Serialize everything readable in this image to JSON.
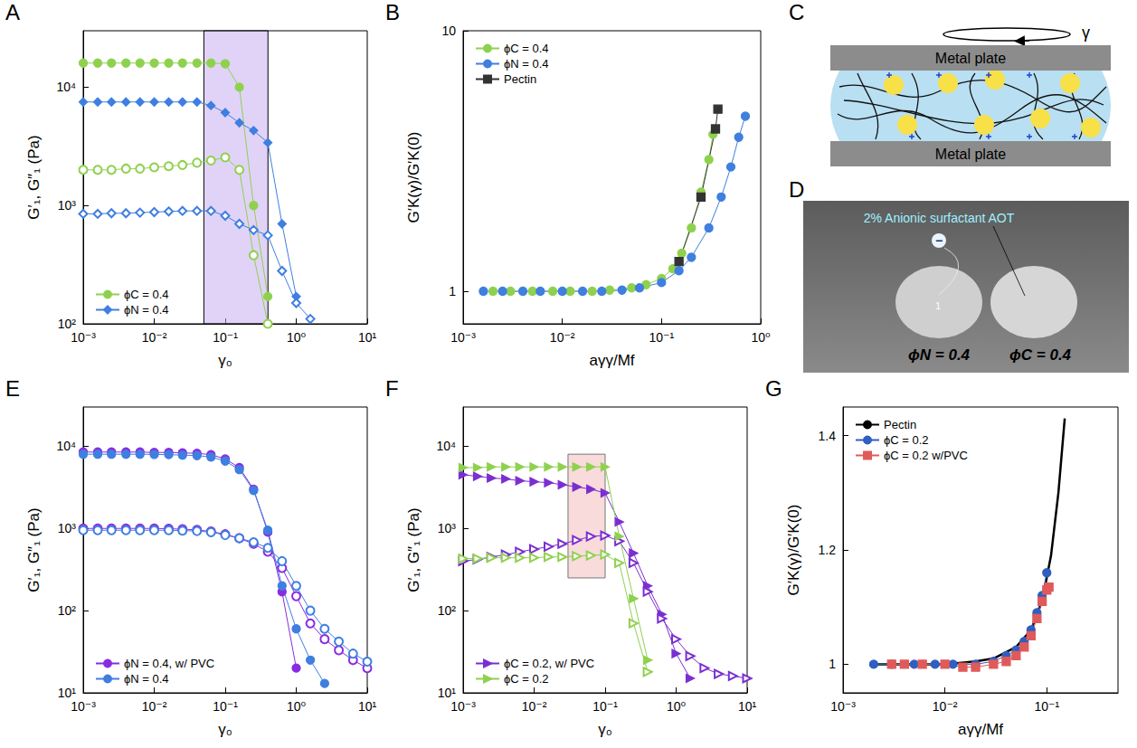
{
  "chart_data": [
    {
      "panel": "A",
      "type": "line",
      "log": true,
      "grid": false,
      "legend": "bottom-left",
      "xlabel": "γ₀",
      "ylabel": "G′₁, G″₁ (Pa)",
      "xlim": [
        0.001,
        10
      ],
      "ylim": [
        100,
        30000
      ],
      "xticks": [
        {
          "value": 0.001,
          "label": "10⁻³"
        },
        {
          "value": 0.01,
          "label": "10⁻²"
        },
        {
          "value": 0.1,
          "label": "10⁻¹"
        },
        {
          "value": 1,
          "label": "10⁰"
        },
        {
          "value": 10,
          "label": "10¹"
        }
      ],
      "yticks": [
        {
          "value": 100,
          "label": "10²"
        },
        {
          "value": 1000,
          "label": "10³"
        },
        {
          "value": 10000,
          "label": "10⁴"
        }
      ],
      "highlight": {
        "x": [
          0.05,
          0.4
        ]
      },
      "series": [
        {
          "name": "ϕC = 0.4",
          "color": "#8fd14f",
          "marker": "circle",
          "line_style": "solid",
          "x": [
            0.001,
            0.0016,
            0.0025,
            0.004,
            0.0063,
            0.01,
            0.016,
            0.025,
            0.04,
            0.063,
            0.1,
            0.158,
            0.251,
            0.398
          ],
          "values": [
            16000,
            16000,
            16000,
            16000,
            16000,
            16000,
            16000,
            16000,
            16000,
            16000,
            15800,
            10000,
            1000,
            170
          ]
        },
        {
          "name": "ϕC = 0.4",
          "color": "#8fd14f",
          "marker": "circle-open",
          "line_style": "solid",
          "x": [
            0.001,
            0.0016,
            0.0025,
            0.004,
            0.0063,
            0.01,
            0.016,
            0.025,
            0.04,
            0.063,
            0.1,
            0.158,
            0.251,
            0.398
          ],
          "values": [
            2000,
            2000,
            2000,
            2050,
            2050,
            2100,
            2150,
            2200,
            2300,
            2400,
            2550,
            2000,
            380,
            100
          ]
        },
        {
          "name": "ϕN = 0.4",
          "color": "#3f7fe0",
          "marker": "diamond",
          "line_style": "solid",
          "x": [
            0.001,
            0.0016,
            0.0025,
            0.004,
            0.0063,
            0.01,
            0.016,
            0.025,
            0.04,
            0.063,
            0.1,
            0.158,
            0.251,
            0.398,
            0.631,
            1.0
          ],
          "values": [
            7500,
            7500,
            7500,
            7500,
            7500,
            7500,
            7500,
            7500,
            7500,
            7000,
            6100,
            5000,
            4300,
            3400,
            700,
            170
          ]
        },
        {
          "name": "ϕN = 0.4",
          "color": "#3f7fe0",
          "marker": "diamond-open",
          "line_style": "solid",
          "x": [
            0.001,
            0.0016,
            0.0025,
            0.004,
            0.0063,
            0.01,
            0.016,
            0.025,
            0.04,
            0.063,
            0.1,
            0.158,
            0.251,
            0.398,
            0.631,
            1.0,
            1.58
          ],
          "values": [
            850,
            850,
            860,
            860,
            870,
            880,
            890,
            900,
            900,
            900,
            820,
            700,
            620,
            560,
            280,
            150,
            110
          ]
        }
      ]
    },
    {
      "panel": "B",
      "type": "line",
      "log": true,
      "grid": false,
      "legend": "top-left",
      "xlabel": "aγγ/Mf",
      "ylabel": "G′K(γ)/G′K(0)",
      "xlim": [
        0.001,
        1
      ],
      "ylim": [
        0.75,
        10
      ],
      "xticks": [
        {
          "value": 0.001,
          "label": "10⁻³"
        },
        {
          "value": 0.01,
          "label": "10⁻²"
        },
        {
          "value": 0.1,
          "label": "10⁻¹"
        },
        {
          "value": 1,
          "label": "10⁰"
        }
      ],
      "yticks": [
        1,
        10
      ],
      "series": [
        {
          "name": "ϕC = 0.4",
          "color": "#8fd14f",
          "marker": "circle",
          "line_style": "solid",
          "x": [
            0.002,
            0.003,
            0.005,
            0.008,
            0.012,
            0.02,
            0.03,
            0.05,
            0.07,
            0.1,
            0.13,
            0.16,
            0.2,
            0.25,
            0.3,
            0.33
          ],
          "values": [
            1,
            1,
            1,
            1,
            1,
            1,
            1.01,
            1.03,
            1.06,
            1.12,
            1.22,
            1.4,
            1.75,
            2.4,
            3.2,
            4.0
          ]
        },
        {
          "name": "ϕN = 0.4",
          "color": "#3f7fe0",
          "marker": "circle",
          "line_style": "solid",
          "x": [
            0.0016,
            0.0025,
            0.004,
            0.006,
            0.01,
            0.016,
            0.025,
            0.04,
            0.06,
            0.1,
            0.15,
            0.2,
            0.3,
            0.4,
            0.5,
            0.6,
            0.7
          ],
          "values": [
            1,
            1,
            1,
            1,
            1,
            1,
            1,
            1.01,
            1.03,
            1.08,
            1.2,
            1.35,
            1.75,
            2.3,
            3.0,
            3.9,
            4.7
          ]
        },
        {
          "name": "Pectin",
          "color": "#333333",
          "marker": "square",
          "line_style": "solid",
          "x": [
            0.15,
            0.25,
            0.35,
            0.37
          ],
          "values": [
            1.3,
            2.3,
            4.2,
            5.0
          ]
        }
      ]
    },
    {
      "panel": "E",
      "type": "line",
      "log": true,
      "grid": false,
      "legend": "bottom-left",
      "xlabel": "γ₀",
      "ylabel": "G′₁, G″₁ (Pa)",
      "xlim": [
        0.001,
        10
      ],
      "ylim": [
        10,
        30000
      ],
      "xticks": [
        {
          "value": 0.001,
          "label": "10⁻³"
        },
        {
          "value": 0.01,
          "label": "10⁻²"
        },
        {
          "value": 0.1,
          "label": "10⁻¹"
        },
        {
          "value": 1,
          "label": "10⁰"
        },
        {
          "value": 10,
          "label": "10¹"
        }
      ],
      "yticks": [
        {
          "value": 10,
          "label": "10¹"
        },
        {
          "value": 100,
          "label": "10²"
        },
        {
          "value": 1000,
          "label": "10³"
        },
        {
          "value": 10000,
          "label": "10⁴"
        }
      ],
      "series": [
        {
          "name": "ϕN = 0.4, w/ PVC",
          "color": "#8a2be2",
          "marker": "circle",
          "line_style": "solid",
          "x": [
            0.001,
            0.0016,
            0.0025,
            0.004,
            0.0063,
            0.01,
            0.016,
            0.025,
            0.04,
            0.063,
            0.1,
            0.158,
            0.251,
            0.398,
            0.631,
            1.0
          ],
          "values": [
            8500,
            8500,
            8500,
            8500,
            8500,
            8400,
            8400,
            8300,
            8200,
            7900,
            7000,
            5500,
            3000,
            900,
            170,
            20
          ]
        },
        {
          "name": "ϕN = 0.4, w/ PVC",
          "color": "#8a2be2",
          "marker": "circle-open",
          "line_style": "solid",
          "x": [
            0.001,
            0.0016,
            0.0025,
            0.004,
            0.0063,
            0.01,
            0.016,
            0.025,
            0.04,
            0.063,
            0.1,
            0.158,
            0.251,
            0.398,
            0.631,
            1.0,
            1.58,
            2.51,
            3.98,
            6.31,
            10
          ],
          "values": [
            1000,
            1000,
            1000,
            1000,
            1000,
            1000,
            990,
            980,
            960,
            920,
            850,
            760,
            650,
            520,
            330,
            150,
            70,
            45,
            33,
            25,
            20
          ]
        },
        {
          "name": "ϕN = 0.4",
          "color": "#3f7fe0",
          "marker": "circle",
          "line_style": "solid",
          "x": [
            0.001,
            0.0016,
            0.0025,
            0.004,
            0.0063,
            0.01,
            0.016,
            0.025,
            0.04,
            0.063,
            0.1,
            0.158,
            0.251,
            0.398,
            0.631,
            1.0,
            1.58,
            2.51
          ],
          "values": [
            8000,
            8000,
            8000,
            8000,
            8000,
            7950,
            7900,
            7800,
            7700,
            7400,
            6600,
            5200,
            2900,
            950,
            200,
            60,
            25,
            13
          ]
        },
        {
          "name": "ϕN = 0.4",
          "color": "#3f7fe0",
          "marker": "circle-open",
          "line_style": "solid",
          "x": [
            0.001,
            0.0016,
            0.0025,
            0.004,
            0.0063,
            0.01,
            0.016,
            0.025,
            0.04,
            0.063,
            0.1,
            0.158,
            0.251,
            0.398,
            0.631,
            1.0,
            1.58,
            2.51,
            3.98,
            6.31,
            10
          ],
          "values": [
            950,
            950,
            950,
            950,
            950,
            950,
            950,
            940,
            930,
            900,
            830,
            760,
            680,
            580,
            400,
            200,
            100,
            60,
            42,
            30,
            24
          ]
        }
      ]
    },
    {
      "panel": "F",
      "type": "line",
      "log": true,
      "grid": false,
      "legend": "bottom-left",
      "xlabel": "γ₀",
      "ylabel": "G′₁, G″₁ (Pa)",
      "xlim": [
        0.001,
        10
      ],
      "ylim": [
        10,
        30000
      ],
      "xticks": [
        {
          "value": 0.001,
          "label": "10⁻³"
        },
        {
          "value": 0.01,
          "label": "10⁻²"
        },
        {
          "value": 0.1,
          "label": "10⁻¹"
        },
        {
          "value": 1,
          "label": "10⁰"
        },
        {
          "value": 10,
          "label": "10¹"
        }
      ],
      "yticks": [
        {
          "value": 10,
          "label": "10¹"
        },
        {
          "value": 100,
          "label": "10²"
        },
        {
          "value": 1000,
          "label": "10³"
        },
        {
          "value": 10000,
          "label": "10⁴"
        }
      ],
      "highlight": {
        "x": [
          0.03,
          0.1
        ],
        "y": [
          250,
          8000
        ]
      },
      "series": [
        {
          "name": "ϕC = 0.2, w/ PVC",
          "color": "#7b2fd0",
          "marker": "triangle-right",
          "line_style": "solid",
          "x": [
            0.001,
            0.0016,
            0.0025,
            0.004,
            0.0063,
            0.01,
            0.016,
            0.025,
            0.04,
            0.063,
            0.1,
            0.158,
            0.251,
            0.398,
            0.631,
            1.0,
            1.58
          ],
          "values": [
            4500,
            4300,
            4100,
            4000,
            3800,
            3700,
            3600,
            3400,
            3200,
            3000,
            2700,
            1200,
            500,
            200,
            90,
            30,
            15
          ]
        },
        {
          "name": "ϕC = 0.2, w/ PVC",
          "color": "#7b2fd0",
          "marker": "triangle-right-open",
          "line_style": "solid",
          "x": [
            0.001,
            0.0016,
            0.0025,
            0.004,
            0.0063,
            0.01,
            0.016,
            0.025,
            0.04,
            0.063,
            0.1,
            0.158,
            0.251,
            0.398,
            0.631,
            1.0,
            1.58,
            2.51,
            3.98,
            6.31,
            10
          ],
          "values": [
            400,
            420,
            450,
            480,
            520,
            560,
            600,
            650,
            720,
            800,
            820,
            700,
            380,
            170,
            80,
            45,
            28,
            20,
            17,
            16,
            15
          ]
        },
        {
          "name": "ϕC = 0.2",
          "color": "#8fd14f",
          "marker": "triangle-right",
          "line_style": "solid",
          "x": [
            0.001,
            0.0016,
            0.0025,
            0.004,
            0.0063,
            0.01,
            0.016,
            0.025,
            0.04,
            0.063,
            0.1,
            0.158,
            0.251,
            0.398
          ],
          "values": [
            5500,
            5500,
            5600,
            5600,
            5600,
            5600,
            5600,
            5600,
            5600,
            5600,
            5600,
            800,
            140,
            25
          ]
        },
        {
          "name": "ϕC = 0.2",
          "color": "#8fd14f",
          "marker": "triangle-right-open",
          "line_style": "solid",
          "x": [
            0.001,
            0.0016,
            0.0025,
            0.004,
            0.0063,
            0.01,
            0.016,
            0.025,
            0.04,
            0.063,
            0.1,
            0.158,
            0.251,
            0.398
          ],
          "values": [
            430,
            430,
            440,
            440,
            440,
            440,
            450,
            450,
            460,
            470,
            480,
            380,
            70,
            18
          ]
        }
      ]
    },
    {
      "panel": "G",
      "type": "line",
      "log": "x",
      "grid": false,
      "legend": "top-left",
      "xlabel": "aγγ/Mf",
      "ylabel": "G′K(γ)/G′K(0)",
      "xlim": [
        0.001,
        0.5
      ],
      "ylim": [
        0.95,
        1.45
      ],
      "xticks": [
        {
          "value": 0.001,
          "label": "10⁻³"
        },
        {
          "value": 0.01,
          "label": "10⁻²"
        },
        {
          "value": 0.1,
          "label": "10⁻¹"
        }
      ],
      "yticks": [
        1,
        1.2,
        1.4
      ],
      "series": [
        {
          "name": "Pectin",
          "color": "#000000",
          "marker": "none",
          "line_style": "solid",
          "x": [
            0.002,
            0.005,
            0.01,
            0.02,
            0.03,
            0.05,
            0.07,
            0.09,
            0.11,
            0.13,
            0.15
          ],
          "values": [
            1,
            1,
            1,
            1.005,
            1.01,
            1.03,
            1.06,
            1.11,
            1.19,
            1.3,
            1.43
          ]
        },
        {
          "name": "ϕC = 0.2",
          "color": "#2f5fc0",
          "marker": "circle",
          "line_style": "solid",
          "x": [
            0.002,
            0.003,
            0.005,
            0.008,
            0.012,
            0.02,
            0.03,
            0.04,
            0.05,
            0.06,
            0.07,
            0.08,
            0.09,
            0.1
          ],
          "values": [
            1,
            1,
            1,
            1,
            1,
            1,
            1.005,
            1.015,
            1.025,
            1.04,
            1.06,
            1.09,
            1.12,
            1.16
          ]
        },
        {
          "name": "ϕC = 0.2 w/PVC",
          "color": "#e05a5a",
          "marker": "square",
          "line_style": "solid",
          "x": [
            0.003,
            0.004,
            0.006,
            0.01,
            0.015,
            0.02,
            0.03,
            0.04,
            0.05,
            0.06,
            0.07,
            0.08,
            0.09,
            0.1,
            0.105
          ],
          "values": [
            1,
            1,
            1,
            1,
            0.995,
            0.995,
            1,
            1.005,
            1.015,
            1.03,
            1.05,
            1.08,
            1.11,
            1.13,
            1.135
          ]
        }
      ]
    }
  ],
  "diagram": {
    "panel": "C",
    "strain_label": "γ",
    "plate_labels": [
      "Metal plate",
      "Metal plate"
    ]
  },
  "photo": {
    "panel": "D",
    "annotation": "2% Anionic surfactant AOT",
    "charge": "−",
    "sample_number": "1",
    "samples": [
      "ϕN = 0.4",
      "ϕC = 0.4"
    ]
  }
}
